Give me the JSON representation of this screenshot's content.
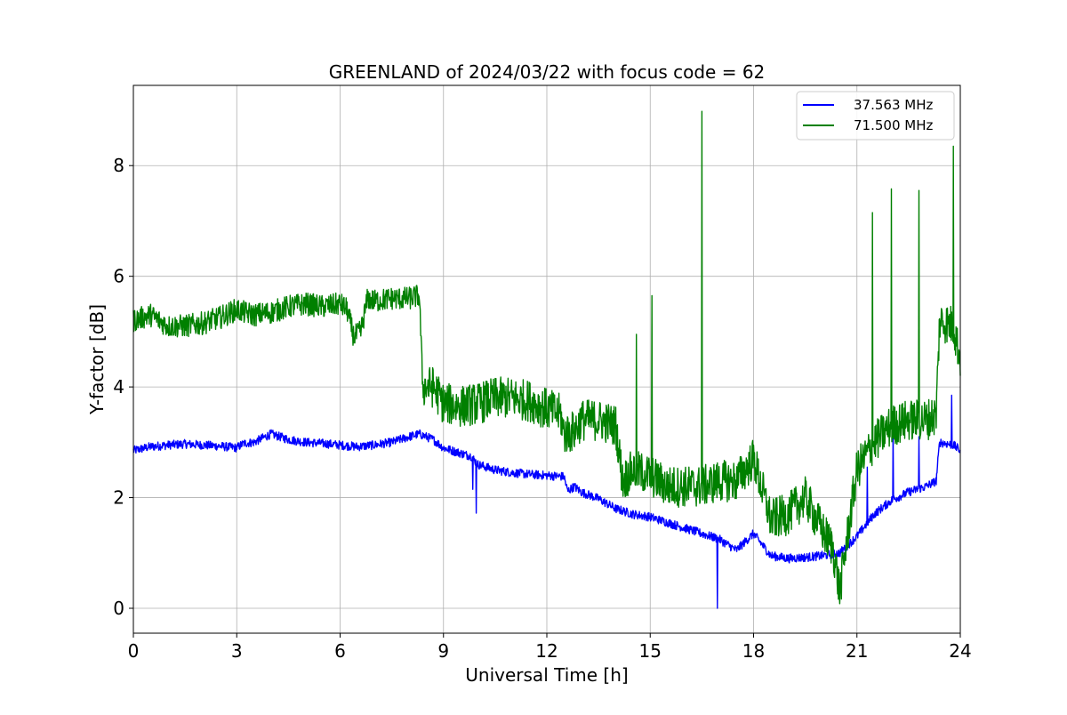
{
  "chart_data": {
    "type": "line",
    "title": "GREENLAND of 2024/03/22 with focus code = 62",
    "xlabel": "Universal Time [h]",
    "ylabel": "Y-factor [dB]",
    "xlim": [
      0,
      24
    ],
    "ylim": [
      -0.45,
      9.45
    ],
    "xticks": [
      0,
      3,
      6,
      9,
      12,
      15,
      18,
      21,
      24
    ],
    "yticks": [
      0,
      2,
      4,
      6,
      8
    ],
    "grid": true,
    "legend_position": "top-right",
    "series": [
      {
        "name": "37.563 MHz",
        "color": "#0000ff",
        "x": [
          0.0,
          0.5,
          1.0,
          1.5,
          2.0,
          2.5,
          3.0,
          3.2,
          3.5,
          4.0,
          4.5,
          5.0,
          5.5,
          6.0,
          6.5,
          7.0,
          7.5,
          8.0,
          8.3,
          8.7,
          9.0,
          9.5,
          9.8,
          10.0,
          10.5,
          11.0,
          11.5,
          12.0,
          12.5,
          12.6,
          12.8,
          13.0,
          13.5,
          14.0,
          14.5,
          15.0,
          15.5,
          16.0,
          16.5,
          17.0,
          17.5,
          18.0,
          18.5,
          19.0,
          19.5,
          20.0,
          20.5,
          21.0,
          21.5,
          22.0,
          22.5,
          23.0,
          23.3,
          23.4,
          23.8,
          24.0
        ],
        "y": [
          2.85,
          2.92,
          2.95,
          2.97,
          2.95,
          2.93,
          2.9,
          2.98,
          3.0,
          3.15,
          3.05,
          3.0,
          2.98,
          2.95,
          2.92,
          2.95,
          3.0,
          3.1,
          3.15,
          3.05,
          2.9,
          2.8,
          2.75,
          2.6,
          2.5,
          2.45,
          2.42,
          2.4,
          2.38,
          2.12,
          2.2,
          2.1,
          1.98,
          1.8,
          1.7,
          1.65,
          1.55,
          1.45,
          1.35,
          1.25,
          1.05,
          1.35,
          0.95,
          0.9,
          0.92,
          0.95,
          1.0,
          1.3,
          1.7,
          1.95,
          2.1,
          2.2,
          2.3,
          3.0,
          2.95,
          2.85
        ],
        "spikes": [
          {
            "x": 9.85,
            "y": 2.15
          },
          {
            "x": 9.95,
            "y": 1.72
          },
          {
            "x": 16.95,
            "y": 0.0
          },
          {
            "x": 21.3,
            "y": 2.55
          },
          {
            "x": 22.05,
            "y": 3.25
          },
          {
            "x": 22.8,
            "y": 3.1
          },
          {
            "x": 23.75,
            "y": 3.85
          }
        ]
      },
      {
        "name": "71.500 MHz",
        "color": "#008000",
        "x": [
          0.0,
          0.5,
          1.0,
          1.5,
          2.0,
          2.5,
          3.0,
          3.2,
          3.5,
          4.0,
          4.5,
          5.0,
          5.5,
          6.0,
          6.2,
          6.4,
          6.6,
          6.8,
          7.0,
          7.5,
          8.0,
          8.3,
          8.4,
          8.7,
          9.0,
          9.5,
          10.0,
          10.5,
          11.0,
          11.5,
          12.0,
          12.4,
          12.5,
          12.8,
          13.0,
          13.5,
          14.0,
          14.2,
          14.5,
          15.0,
          15.5,
          16.0,
          16.5,
          17.0,
          17.5,
          18.0,
          18.5,
          19.0,
          19.5,
          20.0,
          20.3,
          20.5,
          20.7,
          21.0,
          21.5,
          22.0,
          22.5,
          23.0,
          23.3,
          23.4,
          23.8,
          24.0
        ],
        "y": [
          5.2,
          5.3,
          5.1,
          5.1,
          5.15,
          5.25,
          5.4,
          5.35,
          5.3,
          5.35,
          5.45,
          5.5,
          5.45,
          5.5,
          5.4,
          4.9,
          5.0,
          5.6,
          5.55,
          5.6,
          5.6,
          5.65,
          4.0,
          4.0,
          3.7,
          3.65,
          3.7,
          3.8,
          3.8,
          3.75,
          3.6,
          3.5,
          3.15,
          3.2,
          3.4,
          3.4,
          3.3,
          2.3,
          2.5,
          2.4,
          2.2,
          2.2,
          2.2,
          2.3,
          2.3,
          2.7,
          1.6,
          1.7,
          2.0,
          1.4,
          1.1,
          0.3,
          1.2,
          2.5,
          3.0,
          3.3,
          3.4,
          3.4,
          3.5,
          5.2,
          5.1,
          4.5
        ],
        "spikes": [
          {
            "x": 14.6,
            "y": 4.95
          },
          {
            "x": 15.05,
            "y": 5.65
          },
          {
            "x": 16.5,
            "y": 8.98
          },
          {
            "x": 21.45,
            "y": 7.15
          },
          {
            "x": 22.0,
            "y": 7.58
          },
          {
            "x": 22.8,
            "y": 7.55
          },
          {
            "x": 23.8,
            "y": 8.35
          }
        ]
      }
    ]
  }
}
